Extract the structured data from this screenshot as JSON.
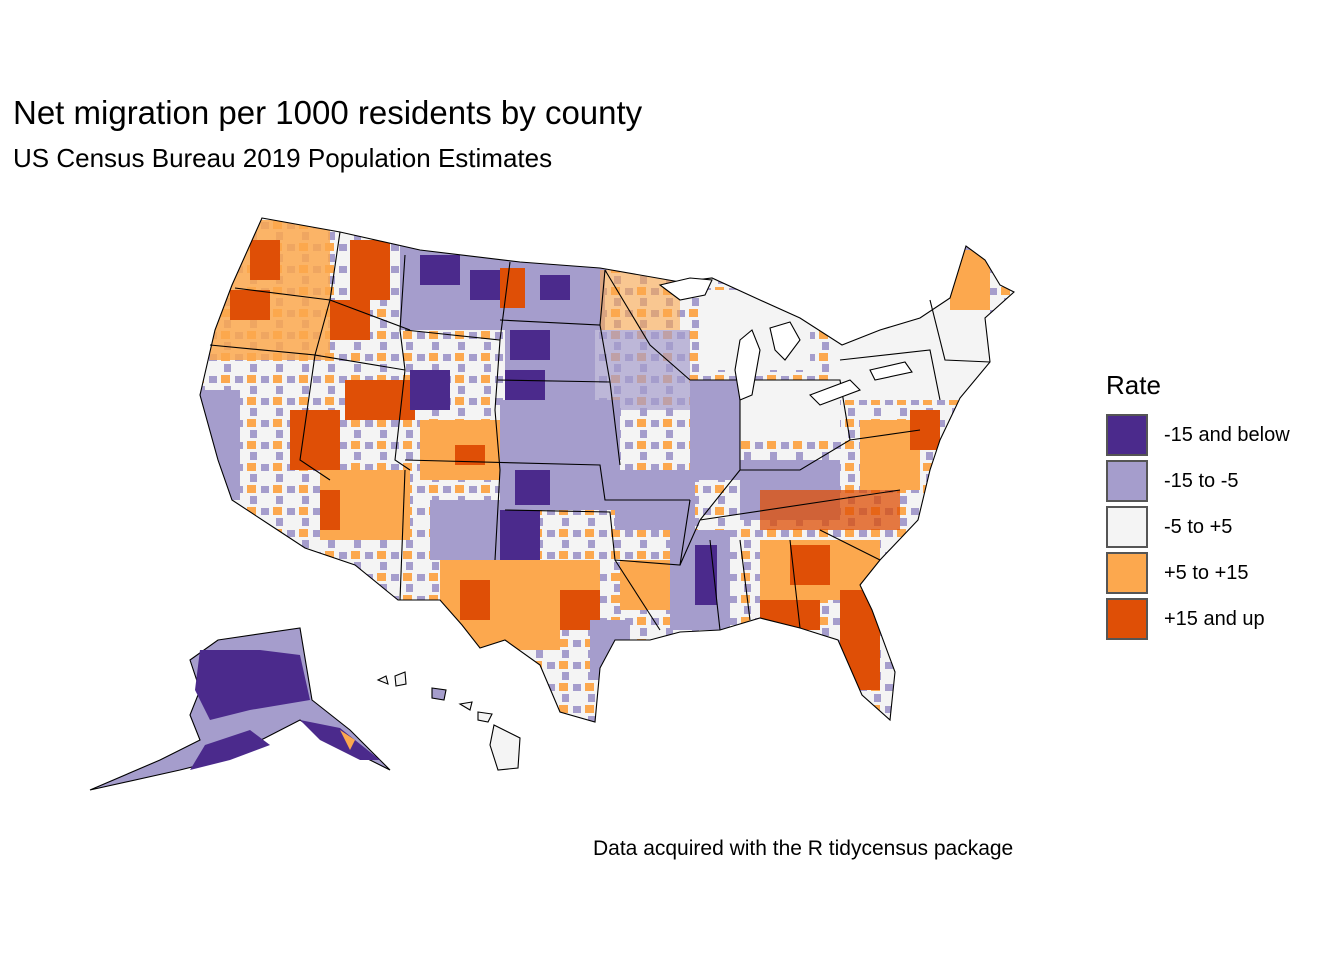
{
  "title": "Net migration per 1000 residents by county",
  "subtitle": "US Census Bureau 2019 Population Estimates",
  "caption": "Data acquired with the R tidycensus package",
  "legend": {
    "title": "Rate",
    "items": [
      {
        "label": "-15 and below",
        "color": "#4b2a8c"
      },
      {
        "label": "-15 to -5",
        "color": "#a59dcc"
      },
      {
        "label": "-5 to +5",
        "color": "#f4f4f4"
      },
      {
        "label": "+5 to +15",
        "color": "#fca84e"
      },
      {
        "label": "+15 and up",
        "color": "#df4f06"
      }
    ]
  }
}
